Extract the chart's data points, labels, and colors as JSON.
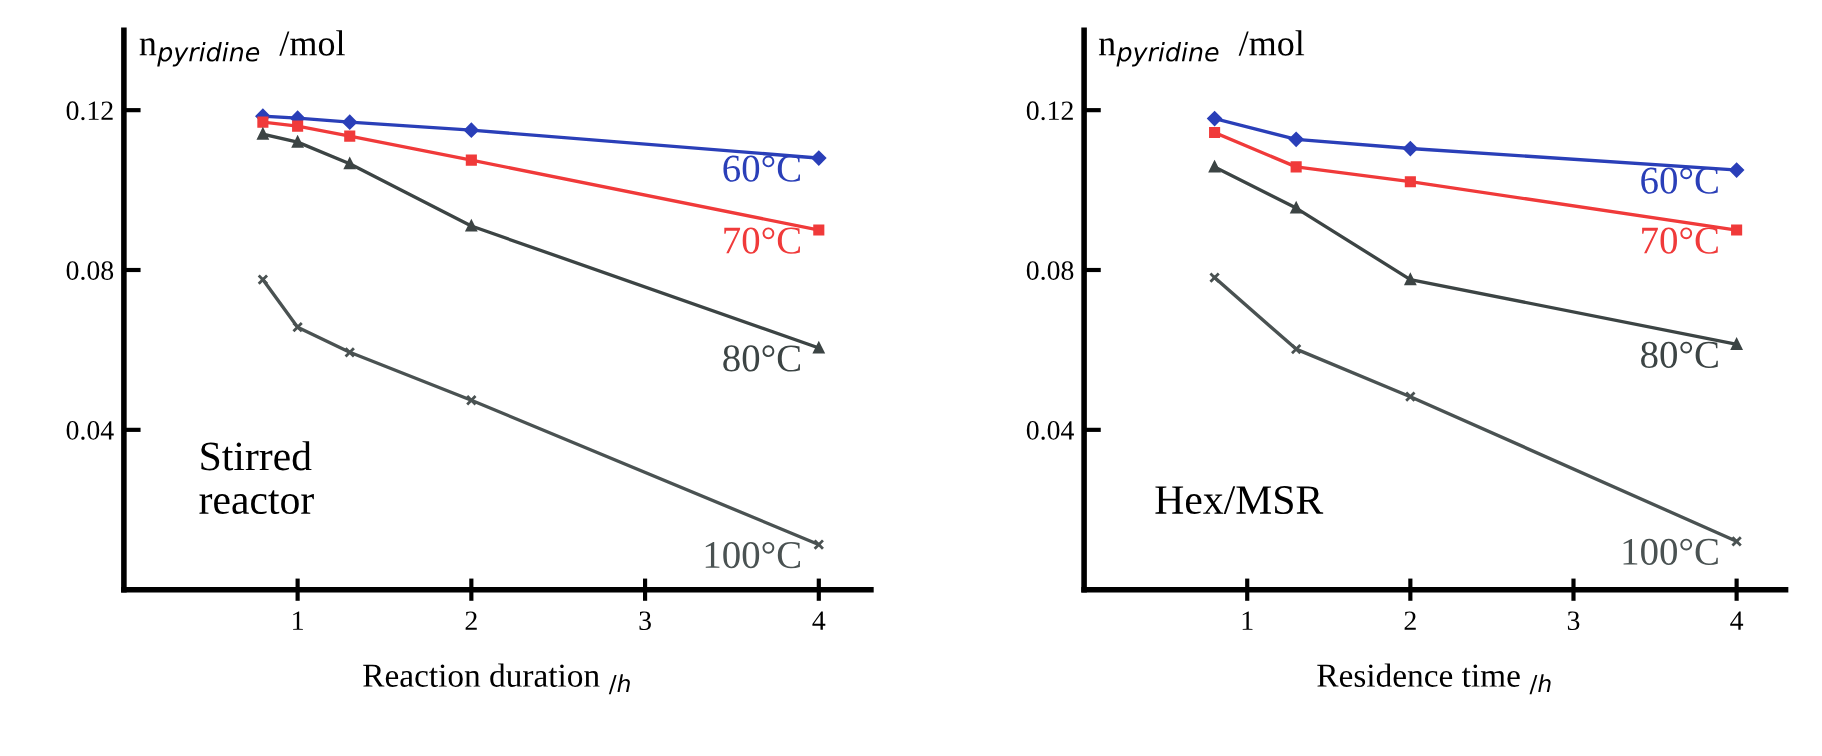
{
  "chart_data": [
    {
      "type": "line",
      "xlabel": "Reaction duration $_{/h}$",
      "ylabel": "n$_{pyridine}$  /mol",
      "xlim": [
        0,
        4.3
      ],
      "xticks": [
        1,
        2,
        3,
        4
      ],
      "ylim": [
        0,
        0.14
      ],
      "yticks": [
        0.04,
        0.08,
        0.12
      ],
      "grid": false,
      "legend": false,
      "annotations": [
        "Stirred\nreactor"
      ],
      "series": [
        {
          "name": "60°C",
          "color": "#2a3fb8",
          "marker": "diamond",
          "x": [
            0.8,
            1.0,
            1.3,
            2.0,
            4.0
          ],
          "values": [
            0.1185,
            0.118,
            0.117,
            0.115,
            0.108
          ]
        },
        {
          "name": "70°C",
          "color": "#f03a3a",
          "marker": "square",
          "x": [
            0.8,
            1.0,
            1.3,
            2.0,
            4.0
          ],
          "values": [
            0.117,
            0.116,
            0.1135,
            0.1075,
            0.09
          ]
        },
        {
          "name": "80°C",
          "color": "#3c4444",
          "marker": "triangle",
          "x": [
            0.8,
            1.0,
            1.3,
            2.0,
            4.0
          ],
          "values": [
            0.114,
            0.112,
            0.1066,
            0.091,
            0.0605
          ]
        },
        {
          "name": "100°C",
          "color": "#4a5252",
          "marker": "cross",
          "x": [
            0.8,
            1.0,
            1.3,
            2.0,
            4.0
          ],
          "values": [
            0.0776,
            0.0657,
            0.0594,
            0.0474,
            0.0113
          ]
        }
      ]
    },
    {
      "type": "line",
      "xlabel": "Residence time $_{/h}$",
      "ylabel": "n$_{pyridine}$  /mol",
      "xlim": [
        0,
        4.3
      ],
      "xticks": [
        1,
        2,
        3,
        4
      ],
      "ylim": [
        0,
        0.14
      ],
      "yticks": [
        0.04,
        0.08,
        0.12
      ],
      "grid": false,
      "legend": false,
      "annotations": [
        "Hex/MSR"
      ],
      "series": [
        {
          "name": "60°C",
          "color": "#2a3fb8",
          "marker": "diamond",
          "x": [
            0.8,
            1.3,
            2.0,
            4.0
          ],
          "values": [
            0.1179,
            0.1127,
            0.1104,
            0.105
          ]
        },
        {
          "name": "70°C",
          "color": "#f03a3a",
          "marker": "square",
          "x": [
            0.8,
            1.3,
            2.0,
            4.0
          ],
          "values": [
            0.1144,
            0.1058,
            0.1021,
            0.09
          ]
        },
        {
          "name": "80°C",
          "color": "#3c4444",
          "marker": "triangle",
          "x": [
            0.8,
            1.3,
            2.0,
            4.0
          ],
          "values": [
            0.1058,
            0.0955,
            0.0776,
            0.0614
          ]
        },
        {
          "name": "100°C",
          "color": "#4a5252",
          "marker": "cross",
          "x": [
            0.8,
            1.3,
            2.0,
            4.0
          ],
          "values": [
            0.0781,
            0.0602,
            0.0483,
            0.0121
          ]
        }
      ]
    }
  ]
}
